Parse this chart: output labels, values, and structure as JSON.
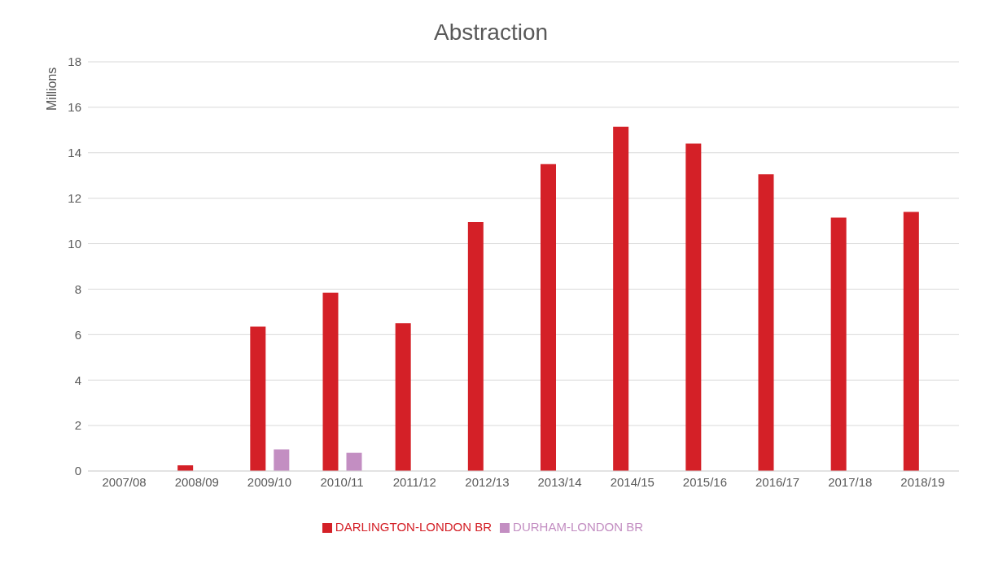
{
  "chart_data": {
    "type": "bar",
    "title": "Abstraction",
    "ylabel": "Millions",
    "categories": [
      "2007/08",
      "2008/09",
      "2009/10",
      "2010/11",
      "2011/12",
      "2012/13",
      "2013/14",
      "2014/15",
      "2015/16",
      "2016/17",
      "2017/18",
      "2018/19"
    ],
    "series": [
      {
        "name": "DARLINGTON-LONDON BR",
        "color": "#d42027",
        "values": [
          0,
          0.25,
          6.35,
          7.85,
          6.5,
          10.95,
          13.5,
          15.15,
          14.4,
          13.05,
          11.15,
          11.4
        ]
      },
      {
        "name": "DURHAM-LONDON BR",
        "color": "#c38ec2",
        "values": [
          0,
          0,
          0.95,
          0.8,
          0,
          0,
          0,
          0,
          0,
          0,
          0,
          0
        ]
      }
    ],
    "ylim": [
      0,
      18
    ],
    "yticks": [
      0,
      2,
      4,
      6,
      8,
      10,
      12,
      14,
      16,
      18
    ],
    "grid": "y",
    "legend": "bottom"
  }
}
